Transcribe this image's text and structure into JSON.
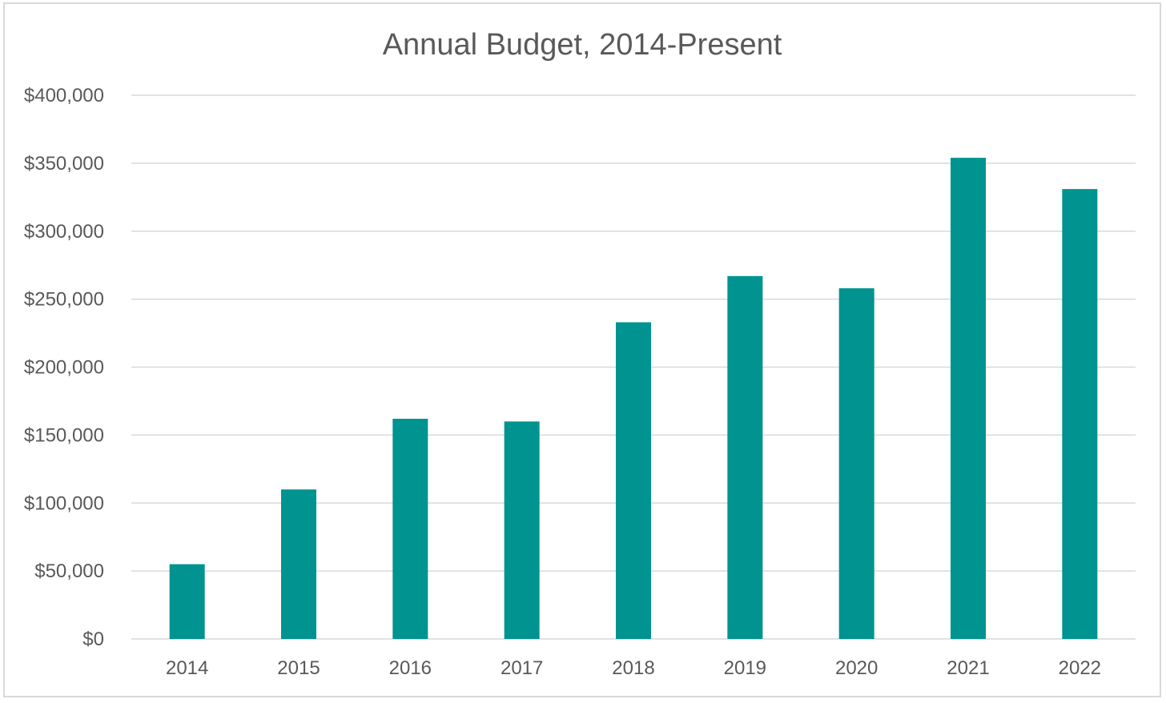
{
  "chart_data": {
    "type": "bar",
    "title": "Annual Budget, 2014-Present",
    "xlabel": "",
    "ylabel": "",
    "categories": [
      "2014",
      "2015",
      "2016",
      "2017",
      "2018",
      "2019",
      "2020",
      "2021",
      "2022"
    ],
    "values": [
      55000,
      110000,
      162000,
      160000,
      233000,
      267000,
      258000,
      354000,
      331000
    ],
    "ylim": [
      0,
      400000
    ],
    "yticks": [
      0,
      50000,
      100000,
      150000,
      200000,
      250000,
      300000,
      350000,
      400000
    ],
    "ytick_labels": [
      "$0",
      "$50,000",
      "$100,000",
      "$150,000",
      "$200,000",
      "$250,000",
      "$300,000",
      "$350,000",
      "$400,000"
    ],
    "grid": true,
    "legend": "none",
    "bar_color": "#009390",
    "grid_color": "#d9d9d9",
    "text_color": "#595959"
  }
}
